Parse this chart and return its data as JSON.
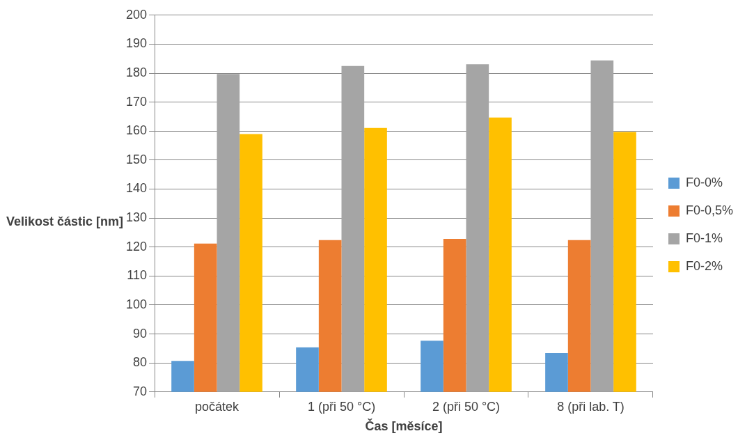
{
  "chart_data": {
    "type": "bar",
    "xlabel": "Čas [měsíce]",
    "ylabel": "Velikost částic [nm]",
    "categories": [
      "počátek",
      "1 (při 50 °C)",
      "2 (při 50 °C)",
      "8 (při lab. T)"
    ],
    "series": [
      {
        "name": "F0-0%",
        "color": "#5b9bd5",
        "values": [
          80.7,
          85.4,
          87.7,
          83.4
        ]
      },
      {
        "name": "F0-0,5%",
        "color": "#ed7d31",
        "values": [
          121.2,
          122.4,
          122.8,
          122.4
        ]
      },
      {
        "name": "F0-1%",
        "color": "#a5a5a5",
        "values": [
          179.7,
          182.5,
          183.1,
          184.4
        ]
      },
      {
        "name": "F0-2%",
        "color": "#ffc000",
        "values": [
          159.0,
          161.1,
          164.7,
          159.7
        ]
      }
    ],
    "ylim": [
      70,
      200
    ],
    "yticks": [
      70,
      80,
      90,
      100,
      110,
      120,
      130,
      140,
      150,
      160,
      170,
      180,
      190,
      200
    ],
    "grid": "y",
    "legend": "right"
  }
}
